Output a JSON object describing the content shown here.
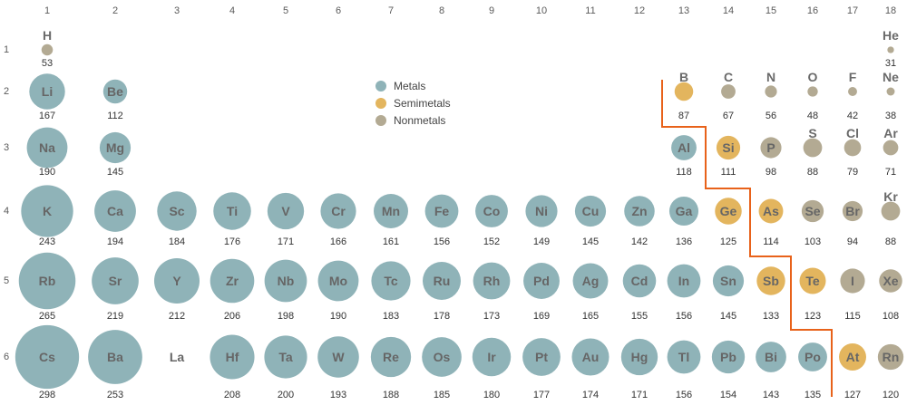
{
  "colors": {
    "metal": "#8fb3b8",
    "semimetal": "#e3b55e",
    "nonmetal": "#b3aa93",
    "divider": "#e8621a",
    "text": "#5a5a5a"
  },
  "groups": [
    "1",
    "2",
    "3",
    "4",
    "5",
    "6",
    "7",
    "8",
    "9",
    "10",
    "11",
    "12",
    "13",
    "14",
    "15",
    "16",
    "17",
    "18"
  ],
  "periods": [
    "1",
    "2",
    "3",
    "4",
    "5",
    "6"
  ],
  "legend": [
    {
      "key": "metal",
      "label": "Metals"
    },
    {
      "key": "semimetal",
      "label": "Semimetals"
    },
    {
      "key": "nonmetal",
      "label": "Nonmetals"
    }
  ],
  "elements": [
    {
      "symbol": "H",
      "group": 1,
      "period": 1,
      "radius": 53,
      "type": "nonmetal"
    },
    {
      "symbol": "He",
      "group": 18,
      "period": 1,
      "radius": 31,
      "type": "nonmetal"
    },
    {
      "symbol": "Li",
      "group": 1,
      "period": 2,
      "radius": 167,
      "type": "metal"
    },
    {
      "symbol": "Be",
      "group": 2,
      "period": 2,
      "radius": 112,
      "type": "metal"
    },
    {
      "symbol": "B",
      "group": 13,
      "period": 2,
      "radius": 87,
      "type": "semimetal"
    },
    {
      "symbol": "C",
      "group": 14,
      "period": 2,
      "radius": 67,
      "type": "nonmetal"
    },
    {
      "symbol": "N",
      "group": 15,
      "period": 2,
      "radius": 56,
      "type": "nonmetal"
    },
    {
      "symbol": "O",
      "group": 16,
      "period": 2,
      "radius": 48,
      "type": "nonmetal"
    },
    {
      "symbol": "F",
      "group": 17,
      "period": 2,
      "radius": 42,
      "type": "nonmetal"
    },
    {
      "symbol": "Ne",
      "group": 18,
      "period": 2,
      "radius": 38,
      "type": "nonmetal"
    },
    {
      "symbol": "Na",
      "group": 1,
      "period": 3,
      "radius": 190,
      "type": "metal"
    },
    {
      "symbol": "Mg",
      "group": 2,
      "period": 3,
      "radius": 145,
      "type": "metal"
    },
    {
      "symbol": "Al",
      "group": 13,
      "period": 3,
      "radius": 118,
      "type": "metal"
    },
    {
      "symbol": "Si",
      "group": 14,
      "period": 3,
      "radius": 111,
      "type": "semimetal"
    },
    {
      "symbol": "P",
      "group": 15,
      "period": 3,
      "radius": 98,
      "type": "nonmetal"
    },
    {
      "symbol": "S",
      "group": 16,
      "period": 3,
      "radius": 88,
      "type": "nonmetal"
    },
    {
      "symbol": "Cl",
      "group": 17,
      "period": 3,
      "radius": 79,
      "type": "nonmetal"
    },
    {
      "symbol": "Ar",
      "group": 18,
      "period": 3,
      "radius": 71,
      "type": "nonmetal"
    },
    {
      "symbol": "K",
      "group": 1,
      "period": 4,
      "radius": 243,
      "type": "metal"
    },
    {
      "symbol": "Ca",
      "group": 2,
      "period": 4,
      "radius": 194,
      "type": "metal"
    },
    {
      "symbol": "Sc",
      "group": 3,
      "period": 4,
      "radius": 184,
      "type": "metal"
    },
    {
      "symbol": "Ti",
      "group": 4,
      "period": 4,
      "radius": 176,
      "type": "metal"
    },
    {
      "symbol": "V",
      "group": 5,
      "period": 4,
      "radius": 171,
      "type": "metal"
    },
    {
      "symbol": "Cr",
      "group": 6,
      "period": 4,
      "radius": 166,
      "type": "metal"
    },
    {
      "symbol": "Mn",
      "group": 7,
      "period": 4,
      "radius": 161,
      "type": "metal"
    },
    {
      "symbol": "Fe",
      "group": 8,
      "period": 4,
      "radius": 156,
      "type": "metal"
    },
    {
      "symbol": "Co",
      "group": 9,
      "period": 4,
      "radius": 152,
      "type": "metal"
    },
    {
      "symbol": "Ni",
      "group": 10,
      "period": 4,
      "radius": 149,
      "type": "metal"
    },
    {
      "symbol": "Cu",
      "group": 11,
      "period": 4,
      "radius": 145,
      "type": "metal"
    },
    {
      "symbol": "Zn",
      "group": 12,
      "period": 4,
      "radius": 142,
      "type": "metal"
    },
    {
      "symbol": "Ga",
      "group": 13,
      "period": 4,
      "radius": 136,
      "type": "metal"
    },
    {
      "symbol": "Ge",
      "group": 14,
      "period": 4,
      "radius": 125,
      "type": "semimetal"
    },
    {
      "symbol": "As",
      "group": 15,
      "period": 4,
      "radius": 114,
      "type": "semimetal"
    },
    {
      "symbol": "Se",
      "group": 16,
      "period": 4,
      "radius": 103,
      "type": "nonmetal"
    },
    {
      "symbol": "Br",
      "group": 17,
      "period": 4,
      "radius": 94,
      "type": "nonmetal"
    },
    {
      "symbol": "Kr",
      "group": 18,
      "period": 4,
      "radius": 88,
      "type": "nonmetal"
    },
    {
      "symbol": "Rb",
      "group": 1,
      "period": 5,
      "radius": 265,
      "type": "metal"
    },
    {
      "symbol": "Sr",
      "group": 2,
      "period": 5,
      "radius": 219,
      "type": "metal"
    },
    {
      "symbol": "Y",
      "group": 3,
      "period": 5,
      "radius": 212,
      "type": "metal"
    },
    {
      "symbol": "Zr",
      "group": 4,
      "period": 5,
      "radius": 206,
      "type": "metal"
    },
    {
      "symbol": "Nb",
      "group": 5,
      "period": 5,
      "radius": 198,
      "type": "metal"
    },
    {
      "symbol": "Mo",
      "group": 6,
      "period": 5,
      "radius": 190,
      "type": "metal"
    },
    {
      "symbol": "Tc",
      "group": 7,
      "period": 5,
      "radius": 183,
      "type": "metal"
    },
    {
      "symbol": "Ru",
      "group": 8,
      "period": 5,
      "radius": 178,
      "type": "metal"
    },
    {
      "symbol": "Rh",
      "group": 9,
      "period": 5,
      "radius": 173,
      "type": "metal"
    },
    {
      "symbol": "Pd",
      "group": 10,
      "period": 5,
      "radius": 169,
      "type": "metal"
    },
    {
      "symbol": "Ag",
      "group": 11,
      "period": 5,
      "radius": 165,
      "type": "metal"
    },
    {
      "symbol": "Cd",
      "group": 12,
      "period": 5,
      "radius": 155,
      "type": "metal"
    },
    {
      "symbol": "In",
      "group": 13,
      "period": 5,
      "radius": 156,
      "type": "metal"
    },
    {
      "symbol": "Sn",
      "group": 14,
      "period": 5,
      "radius": 145,
      "type": "metal"
    },
    {
      "symbol": "Sb",
      "group": 15,
      "period": 5,
      "radius": 133,
      "type": "semimetal"
    },
    {
      "symbol": "Te",
      "group": 16,
      "period": 5,
      "radius": 123,
      "type": "semimetal"
    },
    {
      "symbol": "I",
      "group": 17,
      "period": 5,
      "radius": 115,
      "type": "nonmetal"
    },
    {
      "symbol": "Xe",
      "group": 18,
      "period": 5,
      "radius": 108,
      "type": "nonmetal"
    },
    {
      "symbol": "Cs",
      "group": 1,
      "period": 6,
      "radius": 298,
      "type": "metal"
    },
    {
      "symbol": "Ba",
      "group": 2,
      "period": 6,
      "radius": 253,
      "type": "metal"
    },
    {
      "symbol": "La",
      "group": 3,
      "period": 6,
      "radius": null,
      "type": null
    },
    {
      "symbol": "Hf",
      "group": 4,
      "period": 6,
      "radius": 208,
      "type": "metal"
    },
    {
      "symbol": "Ta",
      "group": 5,
      "period": 6,
      "radius": 200,
      "type": "metal"
    },
    {
      "symbol": "W",
      "group": 6,
      "period": 6,
      "radius": 193,
      "type": "metal"
    },
    {
      "symbol": "Re",
      "group": 7,
      "period": 6,
      "radius": 188,
      "type": "metal"
    },
    {
      "symbol": "Os",
      "group": 8,
      "period": 6,
      "radius": 185,
      "type": "metal"
    },
    {
      "symbol": "Ir",
      "group": 9,
      "period": 6,
      "radius": 180,
      "type": "metal"
    },
    {
      "symbol": "Pt",
      "group": 10,
      "period": 6,
      "radius": 177,
      "type": "metal"
    },
    {
      "symbol": "Au",
      "group": 11,
      "period": 6,
      "radius": 174,
      "type": "metal"
    },
    {
      "symbol": "Hg",
      "group": 12,
      "period": 6,
      "radius": 171,
      "type": "metal"
    },
    {
      "symbol": "Tl",
      "group": 13,
      "period": 6,
      "radius": 156,
      "type": "metal"
    },
    {
      "symbol": "Pb",
      "group": 14,
      "period": 6,
      "radius": 154,
      "type": "metal"
    },
    {
      "symbol": "Bi",
      "group": 15,
      "period": 6,
      "radius": 143,
      "type": "metal"
    },
    {
      "symbol": "Po",
      "group": 16,
      "period": 6,
      "radius": 135,
      "type": "metal"
    },
    {
      "symbol": "At",
      "group": 17,
      "period": 6,
      "radius": 127,
      "type": "semimetal"
    },
    {
      "symbol": "Rn",
      "group": 18,
      "period": 6,
      "radius": 120,
      "type": "nonmetal"
    }
  ]
}
